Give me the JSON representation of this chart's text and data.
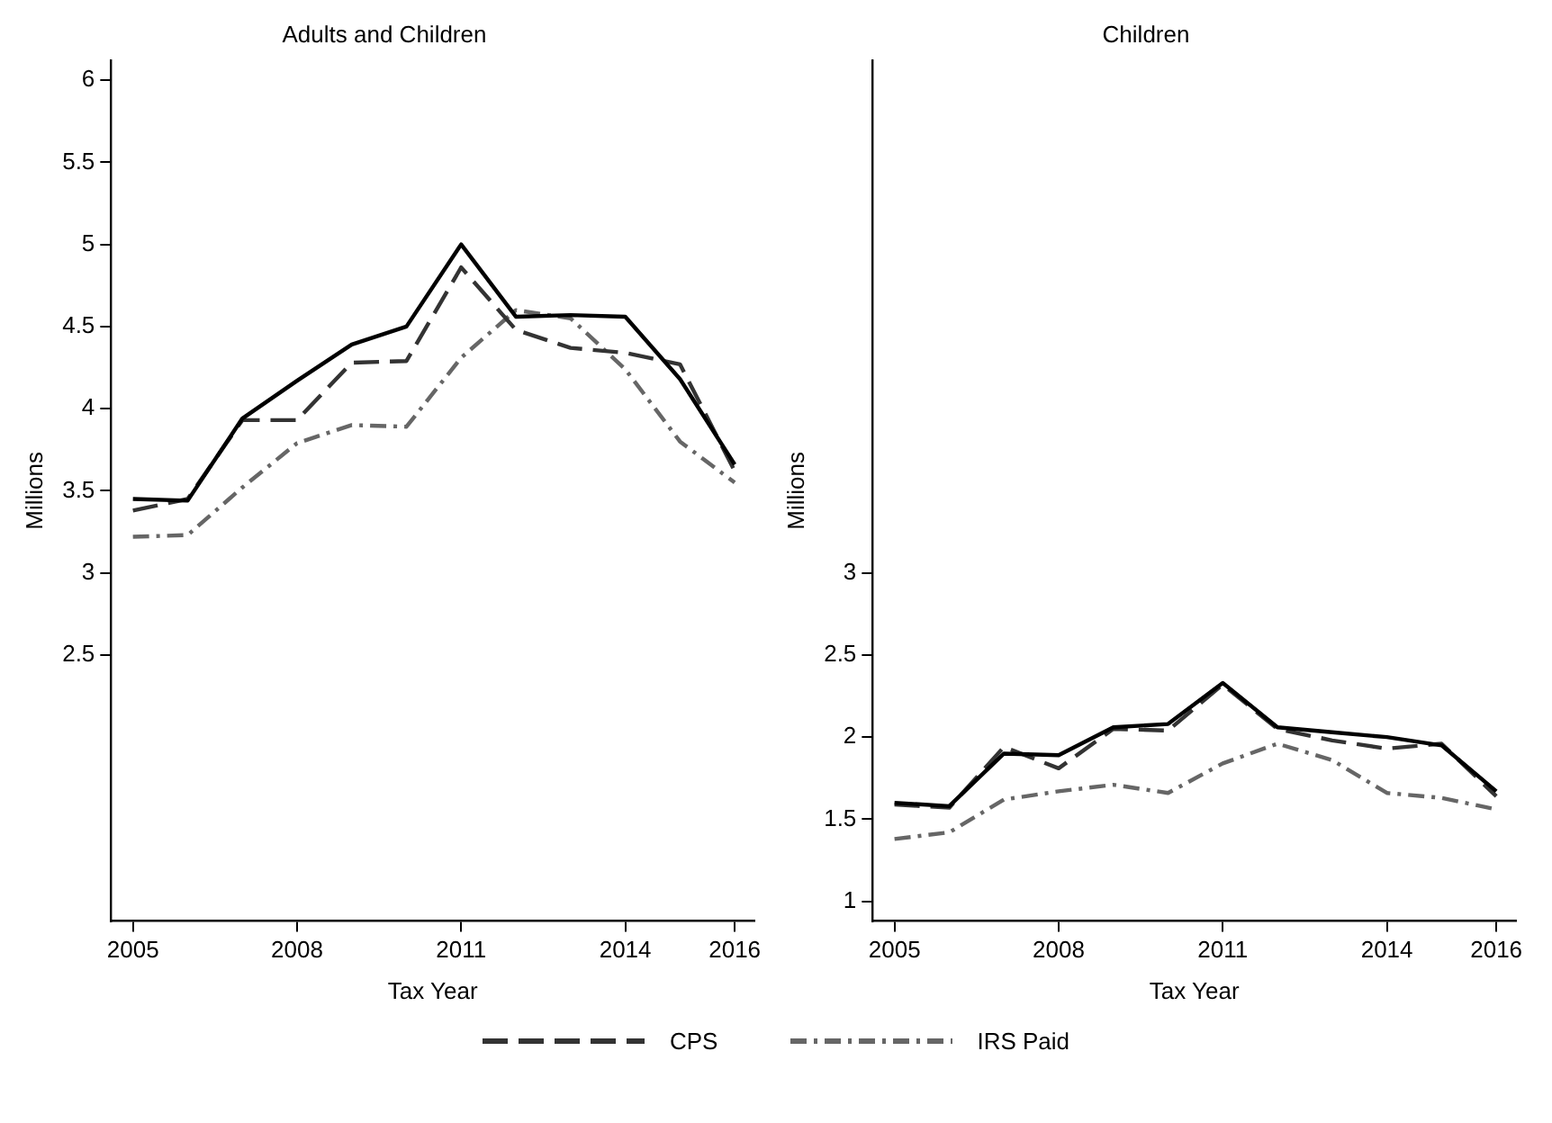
{
  "chart_data": [
    {
      "type": "line",
      "title": "Adults and Children",
      "xlabel": "Tax Year",
      "ylabel": "Millions",
      "x": [
        2005,
        2006,
        2007,
        2008,
        2009,
        2010,
        2011,
        2012,
        2013,
        2014,
        2015,
        2016
      ],
      "xlim": [
        2004.6,
        2016.36
      ],
      "xticks": [
        2005,
        2008,
        2011,
        2014,
        2016
      ],
      "ylim": [
        0.88,
        6.12
      ],
      "yticks": [
        2.5,
        3,
        3.5,
        4,
        4.5,
        5,
        5.5,
        6
      ],
      "grid": false,
      "legend": "bottom",
      "marker": "none",
      "series": [
        {
          "color": "#000000",
          "line_style": "solid",
          "values": [
            3.45,
            3.44,
            3.94,
            4.17,
            4.39,
            4.5,
            5.0,
            4.56,
            4.57,
            4.56,
            4.18,
            3.66
          ]
        },
        {
          "name": "CPS",
          "color": "#333333",
          "line_style": "dashed",
          "values": [
            3.38,
            3.45,
            3.93,
            3.93,
            4.28,
            4.29,
            4.86,
            4.48,
            4.37,
            4.34,
            4.27,
            3.62
          ]
        },
        {
          "name": "IRS Paid",
          "color": "#666666",
          "line_style": "dotted",
          "values": [
            3.22,
            3.23,
            3.52,
            3.79,
            3.9,
            3.89,
            4.31,
            4.6,
            4.55,
            4.24,
            3.8,
            3.55
          ]
        }
      ]
    },
    {
      "type": "line",
      "title": "Children",
      "xlabel": "Tax Year",
      "ylabel": "Millions",
      "x": [
        2005,
        2006,
        2007,
        2008,
        2009,
        2010,
        2011,
        2012,
        2013,
        2014,
        2015,
        2016
      ],
      "xlim": [
        2004.6,
        2016.36
      ],
      "xticks": [
        2005,
        2008,
        2011,
        2014,
        2016
      ],
      "ylim": [
        0.88,
        6.12
      ],
      "yticks": [
        1,
        1.5,
        2,
        2.5,
        3
      ],
      "grid": false,
      "marker": "none",
      "series": [
        {
          "color": "#000000",
          "line_style": "solid",
          "values": [
            1.6,
            1.58,
            1.9,
            1.89,
            2.06,
            2.08,
            2.33,
            2.06,
            2.03,
            2.0,
            1.95,
            1.67
          ]
        },
        {
          "color": "#333333",
          "line_style": "dashed",
          "values": [
            1.59,
            1.57,
            1.94,
            1.81,
            2.05,
            2.04,
            2.32,
            2.05,
            1.98,
            1.93,
            1.96,
            1.64
          ]
        },
        {
          "color": "#666666",
          "line_style": "dotted",
          "values": [
            1.38,
            1.42,
            1.62,
            1.67,
            1.71,
            1.66,
            1.84,
            1.96,
            1.86,
            1.66,
            1.63,
            1.56
          ]
        }
      ]
    }
  ]
}
